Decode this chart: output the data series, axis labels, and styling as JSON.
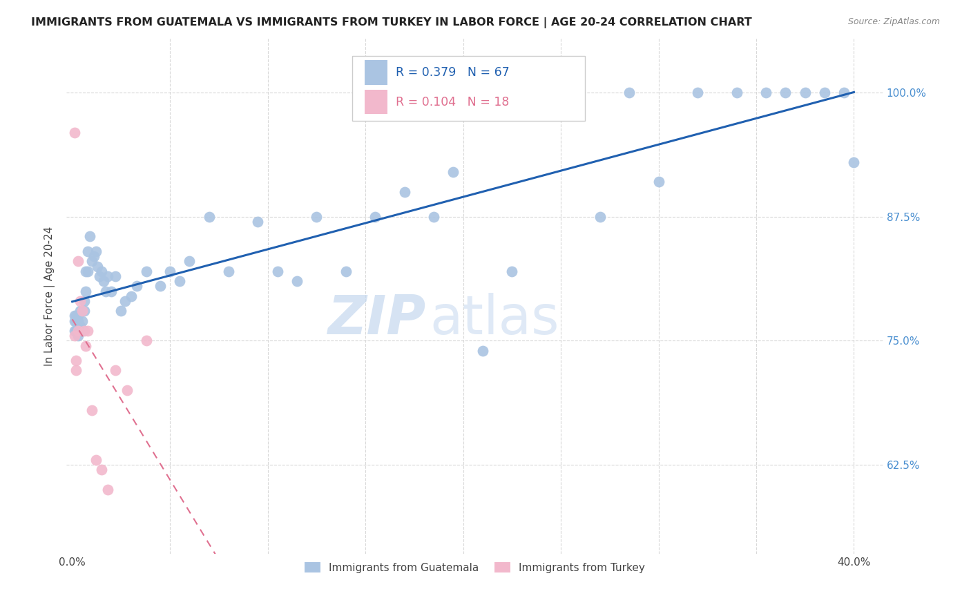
{
  "title": "IMMIGRANTS FROM GUATEMALA VS IMMIGRANTS FROM TURKEY IN LABOR FORCE | AGE 20-24 CORRELATION CHART",
  "source": "Source: ZipAtlas.com",
  "ylabel": "In Labor Force | Age 20-24",
  "x_ticks": [
    0.0,
    0.05,
    0.1,
    0.15,
    0.2,
    0.25,
    0.3,
    0.35,
    0.4
  ],
  "y_ticks": [
    0.625,
    0.75,
    0.875,
    1.0
  ],
  "y_tick_labels_right": [
    "62.5%",
    "75.0%",
    "87.5%",
    "100.0%"
  ],
  "xlim": [
    -0.003,
    0.415
  ],
  "ylim": [
    0.535,
    1.055
  ],
  "legend_r1": "0.379",
  "legend_n1": "67",
  "legend_r2": "0.104",
  "legend_n2": "18",
  "guatemala_color": "#aac4e2",
  "turkey_color": "#f2b8cc",
  "blue_line_color": "#2060b0",
  "pink_line_color": "#e07090",
  "grid_color": "#d8d8d8",
  "watermark_zip": "ZIP",
  "watermark_atlas": "atlas",
  "guatemala_x": [
    0.001,
    0.001,
    0.001,
    0.002,
    0.002,
    0.002,
    0.003,
    0.003,
    0.003,
    0.004,
    0.004,
    0.005,
    0.005,
    0.005,
    0.006,
    0.006,
    0.007,
    0.007,
    0.008,
    0.008,
    0.009,
    0.01,
    0.011,
    0.012,
    0.013,
    0.014,
    0.015,
    0.016,
    0.017,
    0.018,
    0.02,
    0.022,
    0.025,
    0.027,
    0.03,
    0.033,
    0.038,
    0.045,
    0.05,
    0.055,
    0.06,
    0.07,
    0.08,
    0.095,
    0.105,
    0.115,
    0.125,
    0.14,
    0.155,
    0.17,
    0.185,
    0.195,
    0.21,
    0.225,
    0.24,
    0.255,
    0.27,
    0.285,
    0.3,
    0.32,
    0.34,
    0.355,
    0.365,
    0.375,
    0.385,
    0.395,
    0.4
  ],
  "guatemala_y": [
    0.775,
    0.77,
    0.76,
    0.775,
    0.77,
    0.76,
    0.775,
    0.77,
    0.755,
    0.78,
    0.765,
    0.78,
    0.77,
    0.76,
    0.79,
    0.78,
    0.82,
    0.8,
    0.84,
    0.82,
    0.855,
    0.83,
    0.835,
    0.84,
    0.825,
    0.815,
    0.82,
    0.81,
    0.8,
    0.815,
    0.8,
    0.815,
    0.78,
    0.79,
    0.795,
    0.805,
    0.82,
    0.805,
    0.82,
    0.81,
    0.83,
    0.875,
    0.82,
    0.87,
    0.82,
    0.81,
    0.875,
    0.82,
    0.875,
    0.9,
    0.875,
    0.92,
    0.74,
    0.82,
    1.0,
    1.0,
    0.875,
    1.0,
    0.91,
    1.0,
    1.0,
    1.0,
    1.0,
    1.0,
    1.0,
    1.0,
    0.93
  ],
  "turkey_x": [
    0.001,
    0.001,
    0.002,
    0.002,
    0.003,
    0.003,
    0.004,
    0.005,
    0.006,
    0.007,
    0.008,
    0.01,
    0.012,
    0.015,
    0.018,
    0.022,
    0.028,
    0.038
  ],
  "turkey_y": [
    0.96,
    0.755,
    0.73,
    0.72,
    0.83,
    0.76,
    0.79,
    0.78,
    0.76,
    0.745,
    0.76,
    0.68,
    0.63,
    0.62,
    0.6,
    0.72,
    0.7,
    0.75
  ]
}
